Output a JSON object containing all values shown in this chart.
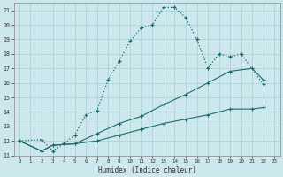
{
  "xlabel": "Humidex (Indice chaleur)",
  "bg_color": "#cde8ec",
  "grid_color": "#aacdd4",
  "line_color": "#1a6e6a",
  "xlim": [
    -0.5,
    23.5
  ],
  "ylim": [
    11,
    21.5
  ],
  "xtick_labels": [
    "0",
    "1",
    "2",
    "3",
    "4",
    "5",
    "6",
    "7",
    "8",
    "9",
    "10",
    "11",
    "12",
    "13",
    "14",
    "15",
    "16",
    "17",
    "18",
    "19",
    "20",
    "21",
    "22",
    "23"
  ],
  "xticks": [
    0,
    1,
    2,
    3,
    4,
    5,
    6,
    7,
    8,
    9,
    10,
    11,
    12,
    13,
    14,
    15,
    16,
    17,
    18,
    19,
    20,
    21,
    22,
    23
  ],
  "yticks": [
    11,
    12,
    13,
    14,
    15,
    16,
    17,
    18,
    19,
    20,
    21
  ],
  "line1_x": [
    0,
    2,
    3,
    4,
    5,
    6,
    7,
    8,
    9,
    10,
    11,
    12,
    13,
    14,
    15,
    16,
    17,
    18,
    19,
    20,
    22
  ],
  "line1_y": [
    12,
    12.1,
    11.3,
    11.8,
    12.4,
    13.8,
    14.1,
    16.2,
    17.5,
    18.9,
    19.8,
    20.0,
    21.2,
    21.2,
    20.5,
    19.0,
    17.0,
    18.0,
    17.8,
    18.0,
    15.9
  ],
  "line2_x": [
    0,
    2,
    3,
    5,
    7,
    9,
    11,
    13,
    15,
    17,
    19,
    21,
    22
  ],
  "line2_y": [
    12,
    11.3,
    11.7,
    11.8,
    12.5,
    13.2,
    13.7,
    14.5,
    15.2,
    16.0,
    16.8,
    17.0,
    16.2
  ],
  "line3_x": [
    0,
    2,
    3,
    5,
    7,
    9,
    11,
    13,
    15,
    17,
    19,
    21,
    22
  ],
  "line3_y": [
    12,
    11.3,
    11.7,
    11.8,
    12.0,
    12.4,
    12.8,
    13.2,
    13.5,
    13.8,
    14.2,
    14.2,
    14.3
  ]
}
